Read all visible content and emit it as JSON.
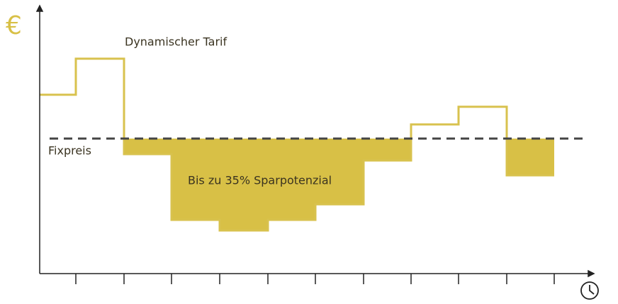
{
  "labels": {
    "currency": "€",
    "dynamic": "Dynamischer Tarif",
    "fixed": "Fixpreis",
    "savings": "Bis zu 35% Sparpotenzial"
  }
}
